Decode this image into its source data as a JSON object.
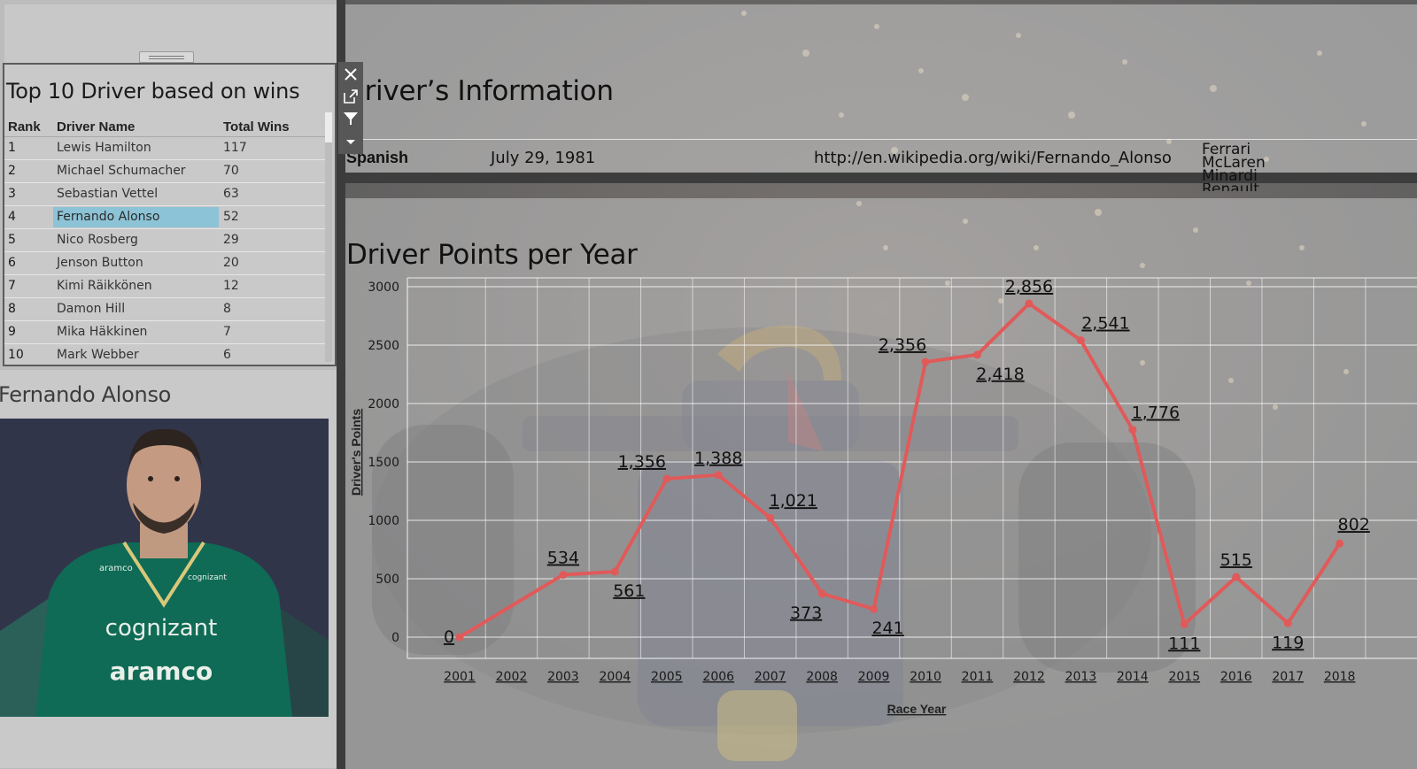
{
  "top10": {
    "title": "Top 10 Driver based on wins",
    "columns": {
      "rank": "Rank",
      "name": "Driver Name",
      "wins": "Total Wins"
    },
    "rows": [
      {
        "rank": "1",
        "name": "Lewis Hamilton",
        "wins": "117"
      },
      {
        "rank": "2",
        "name": "Michael Schumacher",
        "wins": "70"
      },
      {
        "rank": "3",
        "name": "Sebastian Vettel",
        "wins": "63"
      },
      {
        "rank": "4",
        "name": "Fernando Alonso",
        "wins": "52",
        "selected": true
      },
      {
        "rank": "5",
        "name": "Nico Rosberg",
        "wins": "29"
      },
      {
        "rank": "6",
        "name": "Jenson Button",
        "wins": "20"
      },
      {
        "rank": "7",
        "name": "Kimi Räikkönen",
        "wins": "12"
      },
      {
        "rank": "8",
        "name": "Damon Hill",
        "wins": "8"
      },
      {
        "rank": "9",
        "name": "Mika Häkkinen",
        "wins": "7"
      },
      {
        "rank": "10",
        "name": "Mark Webber",
        "wins": "6"
      }
    ]
  },
  "toolbar": {
    "icons": [
      "close-icon",
      "popout-icon",
      "filter-icon",
      "more-options-icon"
    ]
  },
  "driver": {
    "name": "Fernando Alonso",
    "photo_text": {
      "sponsor1": "cognizant",
      "sponsor2": "aramco"
    }
  },
  "info": {
    "title": "Driver’s Information",
    "nationality": "Spanish",
    "dob": "July 29, 1981",
    "url": "http://en.wikipedia.org/wiki/Fernando_Alonso",
    "teams": [
      "Ferrari",
      "McLaren",
      "Minardi",
      "Renault"
    ]
  },
  "chart": {
    "title": "Driver Points per Year"
  },
  "colors": {
    "line": "#e05a5a",
    "selection": "#8dc3d6"
  },
  "chart_data": {
    "type": "line",
    "title": "Driver Points per Year",
    "xlabel": "Race Year",
    "ylabel": "Driver's Points",
    "x": [
      "2001",
      "2003",
      "2004",
      "2005",
      "2006",
      "2007",
      "2008",
      "2009",
      "2010",
      "2011",
      "2012",
      "2013",
      "2014",
      "2015",
      "2016",
      "2017",
      "2018"
    ],
    "x_ticks": [
      "2001",
      "2002",
      "2003",
      "2004",
      "2005",
      "2006",
      "2007",
      "2008",
      "2009",
      "2010",
      "2011",
      "2012",
      "2013",
      "2014",
      "2015",
      "2016",
      "2017",
      "2018"
    ],
    "y_ticks": [
      "0",
      "500",
      "1000",
      "1500",
      "2000",
      "2500",
      "3000"
    ],
    "series": [
      {
        "values": [
          0,
          534,
          561,
          1356,
          1388,
          1021,
          373,
          241,
          2356,
          2418,
          2856,
          2541,
          1776,
          111,
          515,
          119,
          802
        ],
        "labels": [
          "0",
          "534",
          "561",
          "1,356",
          "1,388",
          "1,021",
          "373",
          "241",
          "2,356",
          "2,418",
          "2,856",
          "2,541",
          "1,776",
          "111",
          "515",
          "119",
          "802"
        ]
      }
    ],
    "ylim": [
      0,
      3000
    ],
    "grid": true
  }
}
